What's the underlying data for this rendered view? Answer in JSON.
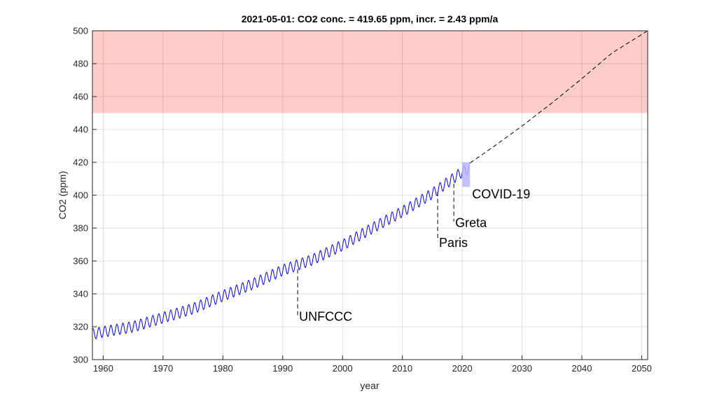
{
  "chart_data": {
    "type": "line",
    "title": "2021-05-01: CO2 conc. = 419.65 ppm, incr. = 2.43 ppm/a",
    "xlabel": "year",
    "ylabel": "CO2 (ppm)",
    "xlim": [
      1958.2,
      2051
    ],
    "ylim": [
      300,
      500
    ],
    "xticks": [
      1960,
      1970,
      1980,
      1990,
      2000,
      2010,
      2020,
      2030,
      2040,
      2050
    ],
    "yticks": [
      300,
      320,
      340,
      360,
      380,
      400,
      420,
      440,
      460,
      480,
      500
    ],
    "grid": true,
    "colors": {
      "measured": "#0000ff",
      "projection": "#000000",
      "danger_band": "#ffcccc",
      "covid_band": "#b8b8ff"
    },
    "danger_band": {
      "y": [
        450,
        500
      ]
    },
    "covid_band": {
      "x": [
        2020.0,
        2021.3
      ],
      "y": [
        405,
        420
      ]
    },
    "series": [
      {
        "kind": "measured-monthly",
        "x": [
          1958.2,
          1960,
          1965,
          1970,
          1975,
          1980,
          1985,
          1990,
          1995,
          2000,
          2005,
          2010,
          2015,
          2020,
          2021.33
        ],
        "y": [
          315.5,
          316.9,
          320.0,
          325.5,
          331.0,
          338.8,
          346.0,
          354.4,
          360.8,
          369.6,
          380.0,
          390.0,
          401.0,
          414.2,
          416.6
        ],
        "seasonal_amplitude": 3.3
      },
      {
        "kind": "projection",
        "x": [
          2021.33,
          2025,
          2030,
          2035,
          2040,
          2045,
          2051
        ],
        "y": [
          419.65,
          428.9,
          442.1,
          456.1,
          470.9,
          486.4,
          500.0
        ]
      }
    ],
    "annotations": [
      {
        "label": "UNFCCC",
        "x": 1992.5,
        "y_top": 355,
        "y_bottom": 327
      },
      {
        "label": "Paris",
        "x": 2015.9,
        "y_top": 402,
        "y_bottom": 372
      },
      {
        "label": "Greta",
        "x": 2018.6,
        "y_top": 407,
        "y_bottom": 384
      },
      {
        "label": "COVID-19",
        "x": 2021.3,
        "y_top": 405,
        "y_bottom": 405
      }
    ]
  }
}
